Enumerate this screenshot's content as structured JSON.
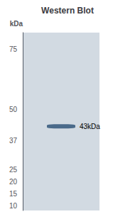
{
  "chart_data": {
    "type": "scatter",
    "title": "Western Blot",
    "y_label": "kDa",
    "values": [
      43
    ],
    "value_labels": [
      "43kDa"
    ],
    "data_labels": true,
    "color": "#4a6a8a",
    "marker": "ellipse",
    "ylim": [
      8,
      82
    ],
    "yticks": [
      75,
      50,
      37,
      25,
      20,
      15,
      10
    ],
    "tick_labels": "y",
    "grid": false
  }
}
